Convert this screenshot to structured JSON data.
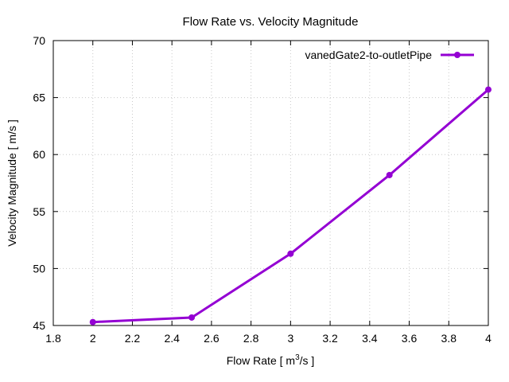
{
  "chart_data": {
    "type": "line",
    "title": "Flow Rate vs. Velocity Magnitude",
    "xlabel": "Flow Rate [ m3/s ]",
    "xlabel_parts": {
      "pre": "Flow Rate [ m",
      "sup": "3",
      "post": "/s ]"
    },
    "ylabel": "Velocity Magnitude [ m/s ]",
    "xlim": [
      1.8,
      4.0
    ],
    "ylim": [
      45,
      70
    ],
    "xticks": [
      1.8,
      2.0,
      2.2,
      2.4,
      2.6,
      2.8,
      3.0,
      3.2,
      3.4,
      3.6,
      3.8,
      4.0
    ],
    "xtick_labels": [
      "1.8",
      "2",
      "2.2",
      "2.4",
      "2.6",
      "2.8",
      "3",
      "3.2",
      "3.4",
      "3.6",
      "3.8",
      "4"
    ],
    "yticks": [
      45,
      50,
      55,
      60,
      65,
      70
    ],
    "ytick_labels": [
      "45",
      "50",
      "55",
      "60",
      "65",
      "70"
    ],
    "grid": true,
    "legend_position": "top-right",
    "series": [
      {
        "name": "vanedGate2-to-outletPipe",
        "color": "#9400d3",
        "x": [
          2.0,
          2.5,
          3.0,
          3.5,
          4.0
        ],
        "y": [
          45.3,
          45.7,
          51.3,
          58.2,
          65.7
        ]
      }
    ]
  }
}
